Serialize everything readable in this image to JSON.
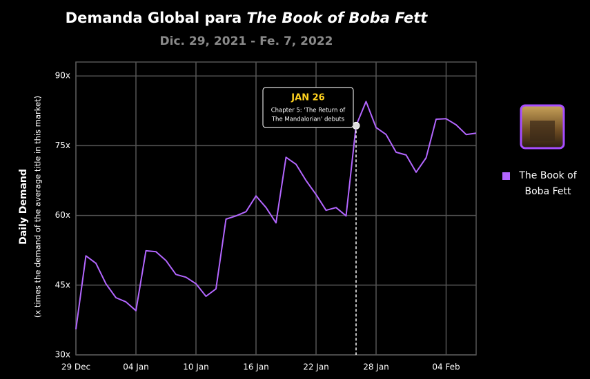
{
  "chart_data": {
    "type": "line",
    "title": {
      "text": "Demanda Global para",
      "emphasis": "The Book of Boba Fett"
    },
    "subtitle": "Dic. 29, 2021 - Fe. 7, 2022",
    "y_label": "Daily Demand",
    "y_sublabel": "(x times the demand of the average title in this market)",
    "categories": [
      "29 Dec",
      null,
      null,
      null,
      null,
      null,
      "04 Jan",
      null,
      null,
      null,
      null,
      null,
      "10 Jan",
      null,
      null,
      null,
      null,
      null,
      "16 Jan",
      null,
      null,
      null,
      null,
      null,
      "22 Jan",
      null,
      null,
      null,
      null,
      null,
      "28 Jan",
      null,
      null,
      null,
      null,
      null,
      null,
      "04 Feb",
      null,
      null,
      null
    ],
    "series": [
      {
        "name": "The Book of Boba Fett",
        "color": "#b366ff",
        "values": [
          35.5,
          51.3,
          49.7,
          45.3,
          42.3,
          41.4,
          39.5,
          52.4,
          52.2,
          50.3,
          47.3,
          46.7,
          45.3,
          42.6,
          44.2,
          59.2,
          59.9,
          60.8,
          64.2,
          61.7,
          58.4,
          72.5,
          71.0,
          67.5,
          64.5,
          61.1,
          61.7,
          59.9,
          79.3,
          84.5,
          78.9,
          77.4,
          73.6,
          73.0,
          69.3,
          72.4,
          80.7,
          80.8,
          79.5,
          77.4,
          77.7
        ]
      }
    ],
    "ylim": [
      30,
      93
    ],
    "yticks": [
      {
        "value": 30,
        "label": "30x"
      },
      {
        "value": 45,
        "label": "45x"
      },
      {
        "value": 60,
        "label": "60x"
      },
      {
        "value": 75,
        "label": "75x"
      },
      {
        "value": 90,
        "label": "90x"
      }
    ],
    "grid": true,
    "annotation": {
      "label": "JAN 26",
      "lines": [
        "Chapter 5: 'The Return of",
        "The Mandalorian' debuts"
      ]
    }
  }
}
